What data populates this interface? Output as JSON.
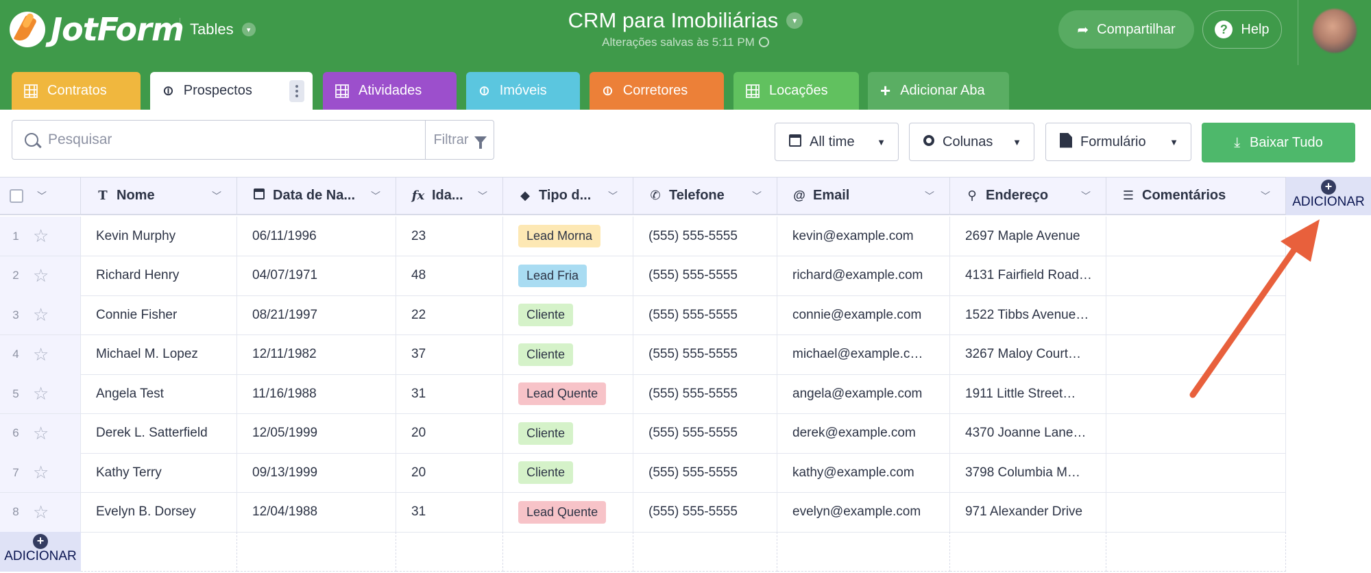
{
  "header": {
    "logo_text": "JotForm",
    "tables_label": "Tables",
    "app_title": "CRM para Imobiliárias",
    "saved_status": "Alterações salvas às 5:11 PM",
    "share_label": "Compartilhar",
    "help_label": "Help",
    "brand_color": "#3f9a4a"
  },
  "tabs": [
    {
      "label": "Contratos",
      "icon": "grid-icon",
      "color": "#f0b73e"
    },
    {
      "label": "Prospectos",
      "icon": "link-icon",
      "color": "#ffffff",
      "active": true
    },
    {
      "label": "Atividades",
      "icon": "grid-icon",
      "color": "#9c4fcc"
    },
    {
      "label": "Imóveis",
      "icon": "link-icon",
      "color": "#5bc6df"
    },
    {
      "label": "Corretores",
      "icon": "link-icon",
      "color": "#ec8038"
    },
    {
      "label": "Locações",
      "icon": "grid-icon",
      "color": "#61c15f"
    },
    {
      "label": "Adicionar Aba",
      "icon": "plus-icon",
      "color": "#5aae63"
    }
  ],
  "toolbar": {
    "search_placeholder": "Pesquisar",
    "filter_label": "Filtrar",
    "time_label": "All time",
    "columns_label": "Colunas",
    "form_label": "Formulário",
    "download_label": "Baixar Tudo"
  },
  "table": {
    "columns": [
      {
        "label": "Nome",
        "icon": "text-icon"
      },
      {
        "label": "Data de Na...",
        "icon": "calendar-icon"
      },
      {
        "label": "Ida...",
        "icon": "formula-icon"
      },
      {
        "label": "Tipo d...",
        "icon": "tag-icon"
      },
      {
        "label": "Telefone",
        "icon": "phone-icon"
      },
      {
        "label": "Email",
        "icon": "at-icon"
      },
      {
        "label": "Endereço",
        "icon": "pin-icon"
      },
      {
        "label": "Comentários",
        "icon": "comment-icon"
      }
    ],
    "add_column_label": "ADICIONAR",
    "add_row_label": "ADICIONAR",
    "rows": [
      {
        "n": "1",
        "nome": "Kevin Murphy",
        "data": "06/11/1996",
        "idade": "23",
        "tipo": "Lead Morna",
        "tipo_color": "#fde8b4",
        "telefone": "(555) 555-5555",
        "email": "kevin@example.com",
        "endereco": "2697 Maple Avenue",
        "comentarios": ""
      },
      {
        "n": "2",
        "nome": "Richard Henry",
        "data": "04/07/1971",
        "idade": "48",
        "tipo": "Lead Fria",
        "tipo_color": "#a9dcf2",
        "telefone": "(555) 555-5555",
        "email": "richard@example.com",
        "endereco": "4131 Fairfield Road…",
        "comentarios": ""
      },
      {
        "n": "3",
        "nome": "Connie Fisher",
        "data": "08/21/1997",
        "idade": "22",
        "tipo": "Cliente",
        "tipo_color": "#d5f2c9",
        "telefone": "(555) 555-5555",
        "email": "connie@example.com",
        "endereco": "1522 Tibbs Avenue…",
        "comentarios": ""
      },
      {
        "n": "4",
        "nome": "Michael M. Lopez",
        "data": "12/11/1982",
        "idade": "37",
        "tipo": "Cliente",
        "tipo_color": "#d5f2c9",
        "telefone": "(555) 555-5555",
        "email": "michael@example.c…",
        "endereco": "3267 Maloy Court…",
        "comentarios": ""
      },
      {
        "n": "5",
        "nome": "Angela Test",
        "data": "11/16/1988",
        "idade": "31",
        "tipo": "Lead Quente",
        "tipo_color": "#f7c3c8",
        "telefone": "(555) 555-5555",
        "email": "angela@example.com",
        "endereco": "1911 Little Street…",
        "comentarios": ""
      },
      {
        "n": "6",
        "nome": "Derek L. Satterfield",
        "data": "12/05/1999",
        "idade": "20",
        "tipo": "Cliente",
        "tipo_color": "#d5f2c9",
        "telefone": "(555) 555-5555",
        "email": "derek@example.com",
        "endereco": "4370 Joanne Lane…",
        "comentarios": ""
      },
      {
        "n": "7",
        "nome": "Kathy Terry",
        "data": "09/13/1999",
        "idade": "20",
        "tipo": "Cliente",
        "tipo_color": "#d5f2c9",
        "telefone": "(555) 555-5555",
        "email": "kathy@example.com",
        "endereco": "3798 Columbia M…",
        "comentarios": ""
      },
      {
        "n": "8",
        "nome": "Evelyn B. Dorsey",
        "data": "12/04/1988",
        "idade": "31",
        "tipo": "Lead Quente",
        "tipo_color": "#f7c3c8",
        "telefone": "(555) 555-5555",
        "email": "evelyn@example.com",
        "endereco": "971 Alexander Drive",
        "comentarios": ""
      }
    ]
  },
  "annotation_color": "#e8603c"
}
